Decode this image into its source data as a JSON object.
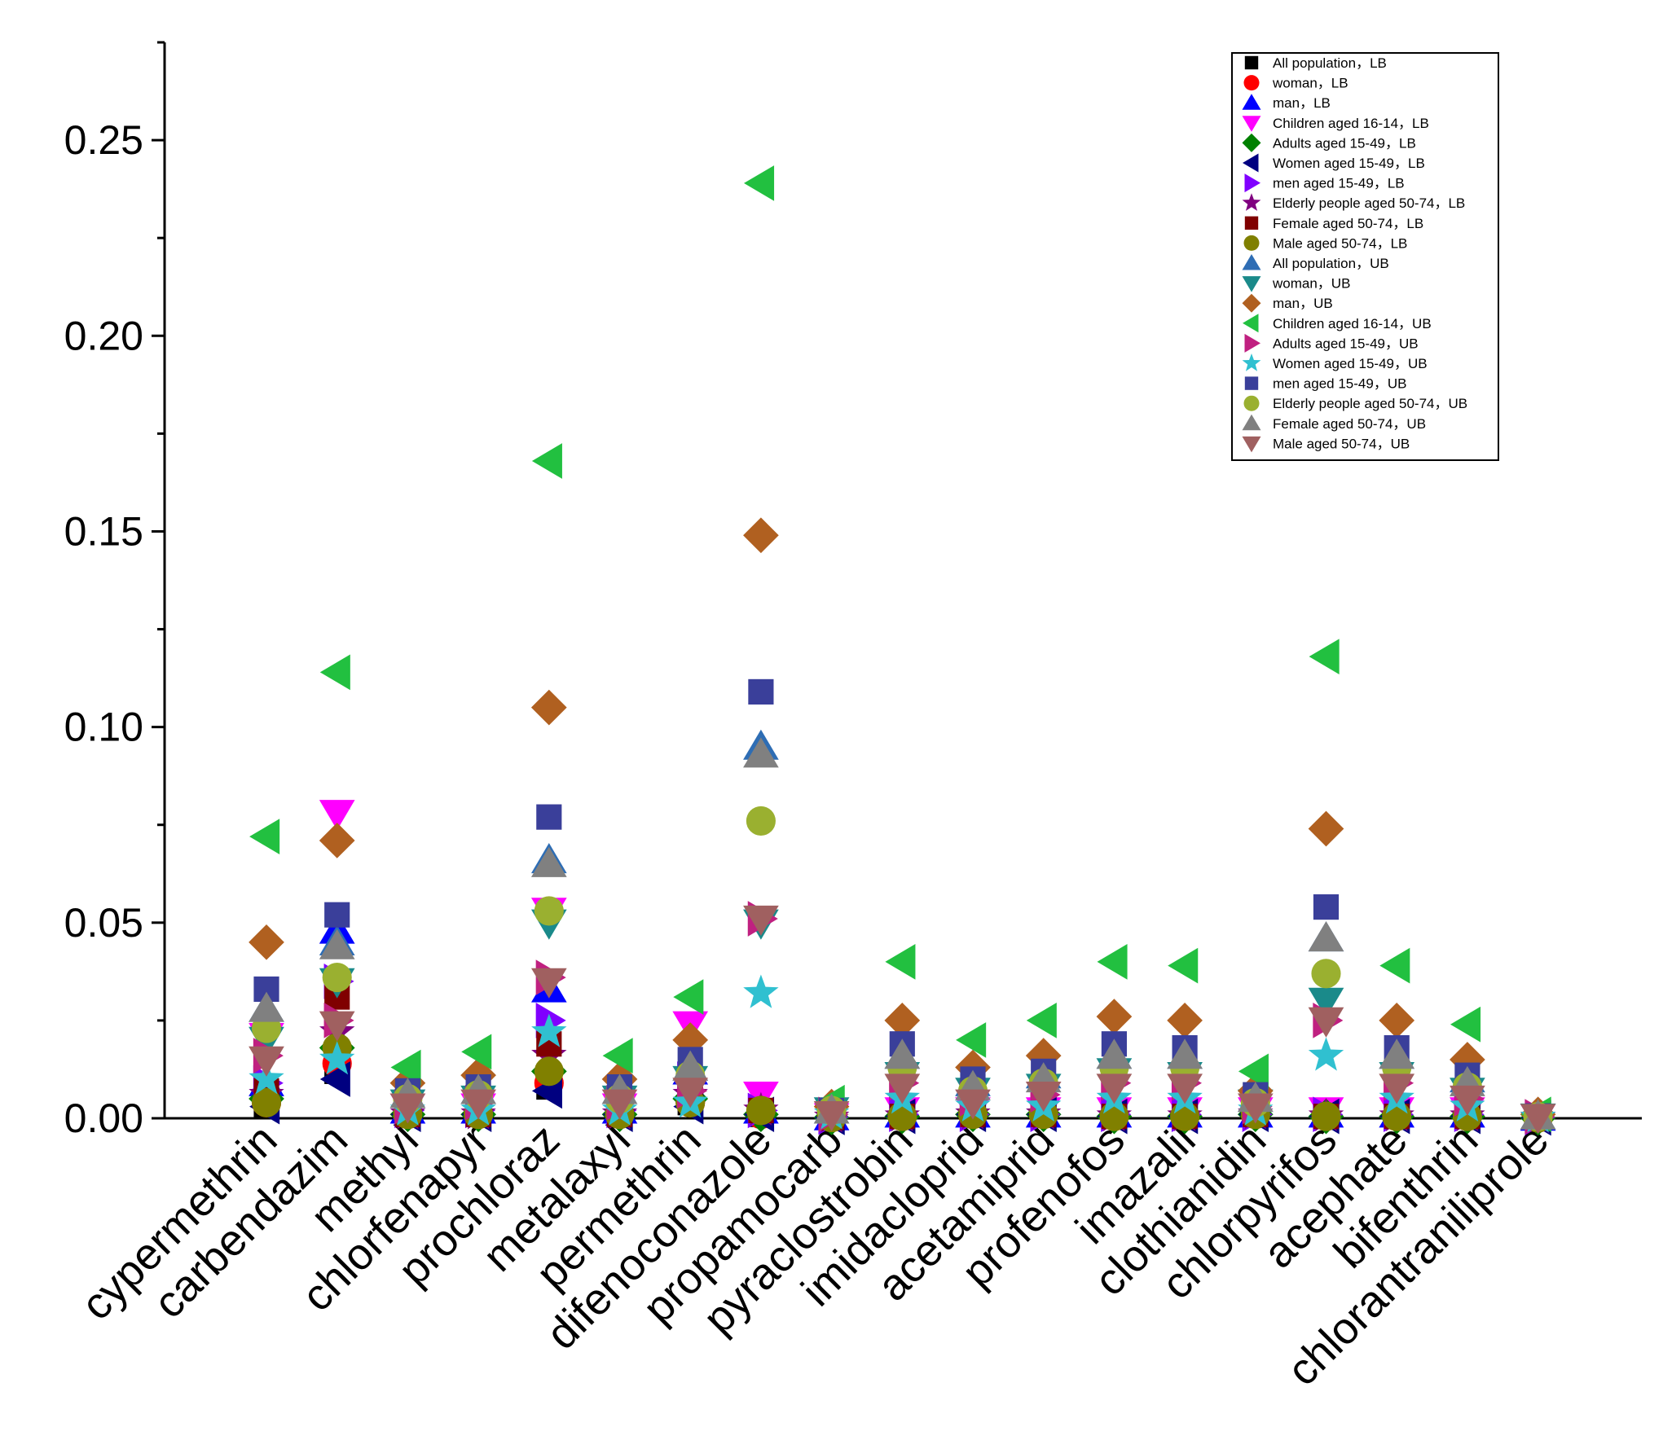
{
  "chart_data": {
    "type": "scatter",
    "title": "",
    "xlabel": "",
    "ylabel": "",
    "ylim": [
      0,
      0.275
    ],
    "yticks": [
      0.0,
      0.05,
      0.1,
      0.15,
      0.2,
      0.25
    ],
    "ytick_labels": [
      "0.00",
      "0.05",
      "0.10",
      "0.15",
      "0.20",
      "0.25"
    ],
    "legend_position": "top-right",
    "categories": [
      "cypermethrin",
      "carbendazim",
      "methyl",
      "chlorfenapyr",
      "prochloraz",
      "metalaxyl",
      "permethrin",
      "difenoconazole",
      "propamocarb",
      "pyraclostrobin",
      "imidacloprid",
      "acetamiprid",
      "profenofos",
      "imazalil",
      "clothianidin",
      "chlorpyrifos",
      "acephate",
      "bifenthrin",
      "chlorantraniliprole"
    ],
    "series": [
      {
        "name": "All population，LB",
        "marker": "square",
        "color": "#000000",
        "values": [
          0.003,
          0.012,
          0.001,
          0.001,
          0.008,
          0.001,
          0.004,
          0.001,
          0.0002,
          0.0005,
          0.001,
          0.001,
          0.0005,
          0.0005,
          0.001,
          0.0005,
          0.0005,
          0.0005,
          0.0001
        ]
      },
      {
        "name": "woman，LB",
        "marker": "circle",
        "color": "#ff0000",
        "values": [
          0.004,
          0.014,
          0.001,
          0.001,
          0.009,
          0.001,
          0.004,
          0.001,
          0.0002,
          0.0005,
          0.001,
          0.001,
          0.0005,
          0.0005,
          0.001,
          0.0005,
          0.0005,
          0.0005,
          0.0001
        ]
      },
      {
        "name": "man，LB",
        "marker": "triangle-up",
        "color": "#0000ff",
        "values": [
          0.009,
          0.048,
          0.002,
          0.002,
          0.033,
          0.002,
          0.012,
          0.002,
          0.0003,
          0.001,
          0.001,
          0.001,
          0.001,
          0.001,
          0.001,
          0.001,
          0.001,
          0.001,
          0.0002
        ]
      },
      {
        "name": "Children aged 16-14，LB",
        "marker": "triangle-down",
        "color": "#ff00ff",
        "values": [
          0.021,
          0.078,
          0.003,
          0.003,
          0.053,
          0.003,
          0.024,
          0.006,
          0.0005,
          0.002,
          0.002,
          0.002,
          0.002,
          0.002,
          0.002,
          0.002,
          0.002,
          0.002,
          0.0003
        ]
      },
      {
        "name": "Adults aged 15-49，LB",
        "marker": "diamond",
        "color": "#008000",
        "values": [
          0.005,
          0.018,
          0.001,
          0.001,
          0.012,
          0.001,
          0.005,
          0.001,
          0.0002,
          0.0005,
          0.001,
          0.001,
          0.0005,
          0.0005,
          0.001,
          0.0005,
          0.0005,
          0.0005,
          0.0001
        ]
      },
      {
        "name": "Women aged 15-49，LB",
        "marker": "triangle-left",
        "color": "#000080",
        "values": [
          0.003,
          0.01,
          0.001,
          0.001,
          0.007,
          0.001,
          0.003,
          0.001,
          0.0002,
          0.0005,
          0.001,
          0.001,
          0.0005,
          0.0005,
          0.001,
          0.0005,
          0.0005,
          0.0005,
          0.0001
        ]
      },
      {
        "name": "men aged 15-49，LB",
        "marker": "triangle-right",
        "color": "#8000ff",
        "values": [
          0.009,
          0.035,
          0.002,
          0.002,
          0.025,
          0.002,
          0.01,
          0.002,
          0.0003,
          0.001,
          0.001,
          0.001,
          0.001,
          0.001,
          0.001,
          0.001,
          0.001,
          0.001,
          0.0002
        ]
      },
      {
        "name": "Elderly people aged 50-74，LB",
        "marker": "star",
        "color": "#800080",
        "values": [
          0.006,
          0.022,
          0.001,
          0.001,
          0.016,
          0.001,
          0.006,
          0.002,
          0.0002,
          0.0005,
          0.001,
          0.001,
          0.0005,
          0.0005,
          0.001,
          0.0005,
          0.0005,
          0.0005,
          0.0001
        ]
      },
      {
        "name": "Female aged 50-74，LB",
        "marker": "square",
        "color": "#800000",
        "values": [
          0.007,
          0.031,
          0.001,
          0.001,
          0.019,
          0.001,
          0.006,
          0.002,
          0.0002,
          0.0005,
          0.001,
          0.001,
          0.0005,
          0.0005,
          0.001,
          0.0005,
          0.0005,
          0.0005,
          0.0001
        ]
      },
      {
        "name": "Male aged 50-74，LB",
        "marker": "circle",
        "color": "#808000",
        "values": [
          0.004,
          0.018,
          0.001,
          0.001,
          0.012,
          0.001,
          0.004,
          0.002,
          0.0002,
          0.0005,
          0.001,
          0.001,
          0.0005,
          0.0005,
          0.001,
          0.0005,
          0.0005,
          0.0005,
          0.0001
        ]
      },
      {
        "name": "All population，UB",
        "marker": "triangle-up",
        "color": "#2e6db4",
        "values": [
          0.028,
          0.045,
          0.006,
          0.007,
          0.066,
          0.007,
          0.013,
          0.095,
          0.002,
          0.016,
          0.009,
          0.011,
          0.016,
          0.016,
          0.005,
          0.046,
          0.016,
          0.01,
          0.0005
        ]
      },
      {
        "name": "woman，UB",
        "marker": "triangle-down",
        "color": "#1a8a8a",
        "values": [
          0.02,
          0.035,
          0.004,
          0.005,
          0.05,
          0.005,
          0.01,
          0.05,
          0.002,
          0.011,
          0.007,
          0.008,
          0.012,
          0.011,
          0.004,
          0.03,
          0.011,
          0.007,
          0.0004
        ]
      },
      {
        "name": "man，UB",
        "marker": "diamond",
        "color": "#b06020",
        "values": [
          0.045,
          0.071,
          0.009,
          0.011,
          0.105,
          0.01,
          0.02,
          0.149,
          0.003,
          0.025,
          0.013,
          0.016,
          0.026,
          0.025,
          0.007,
          0.074,
          0.025,
          0.015,
          0.001
        ]
      },
      {
        "name": "Children aged 16-14，UB",
        "marker": "triangle-left",
        "color": "#22c040",
        "values": [
          0.072,
          0.114,
          0.013,
          0.017,
          0.168,
          0.016,
          0.031,
          0.239,
          0.004,
          0.04,
          0.02,
          0.025,
          0.04,
          0.039,
          0.012,
          0.118,
          0.039,
          0.024,
          0.001
        ]
      },
      {
        "name": "Adults aged 15-49，UB",
        "marker": "triangle-right",
        "color": "#c02080",
        "values": [
          0.016,
          0.025,
          0.003,
          0.004,
          0.036,
          0.004,
          0.007,
          0.051,
          0.001,
          0.009,
          0.005,
          0.006,
          0.009,
          0.009,
          0.003,
          0.025,
          0.009,
          0.005,
          0.0004
        ]
      },
      {
        "name": "Women aged 15-49，UB",
        "marker": "star",
        "color": "#30c0d0",
        "values": [
          0.01,
          0.015,
          0.002,
          0.002,
          0.022,
          0.002,
          0.004,
          0.032,
          0.001,
          0.005,
          0.003,
          0.003,
          0.005,
          0.005,
          0.002,
          0.016,
          0.005,
          0.003,
          0.0002
        ]
      },
      {
        "name": "men aged 15-49，UB",
        "marker": "square",
        "color": "#3a3f9a",
        "values": [
          0.033,
          0.052,
          0.007,
          0.008,
          0.077,
          0.008,
          0.015,
          0.109,
          0.002,
          0.019,
          0.01,
          0.012,
          0.019,
          0.018,
          0.006,
          0.054,
          0.018,
          0.011,
          0.0006
        ]
      },
      {
        "name": "Elderly people aged 50-74，UB",
        "marker": "circle",
        "color": "#9ab030",
        "values": [
          0.023,
          0.036,
          0.005,
          0.006,
          0.053,
          0.005,
          0.011,
          0.076,
          0.002,
          0.013,
          0.007,
          0.009,
          0.013,
          0.013,
          0.004,
          0.037,
          0.013,
          0.008,
          0.0004
        ]
      },
      {
        "name": "Female aged 50-74，UB",
        "marker": "triangle-up",
        "color": "#808080",
        "values": [
          0.028,
          0.044,
          0.006,
          0.007,
          0.065,
          0.007,
          0.013,
          0.093,
          0.002,
          0.016,
          0.008,
          0.01,
          0.016,
          0.016,
          0.005,
          0.046,
          0.016,
          0.009,
          0.0005
        ]
      },
      {
        "name": "Male aged 50-74，UB",
        "marker": "triangle-down",
        "color": "#a06060",
        "values": [
          0.015,
          0.024,
          0.003,
          0.004,
          0.035,
          0.004,
          0.007,
          0.051,
          0.001,
          0.008,
          0.004,
          0.006,
          0.008,
          0.008,
          0.003,
          0.025,
          0.008,
          0.005,
          0.0003
        ]
      }
    ]
  }
}
